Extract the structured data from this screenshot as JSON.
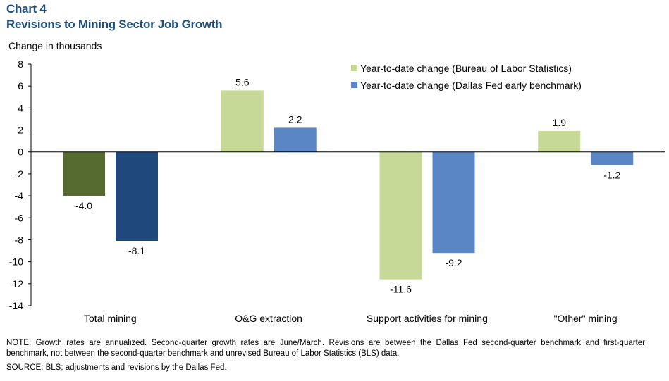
{
  "header": {
    "chart_number": "Chart 4",
    "title": "Revisions to Mining Sector Job Growth"
  },
  "y_unit_label": "Change in thousands",
  "note": "NOTE: Growth rates are annualized. Second-quarter growth rates are June/March. Revisions are between the Dallas Fed second-quarter benchmark and first-quarter benchmark, not between the second-quarter benchmark and unrevised Bureau of Labor Statistics (BLS) data.",
  "source": "SOURCE: BLS; adjustments and revisions by the Dallas Fed.",
  "chart_data": {
    "type": "bar",
    "categories": [
      "Total mining",
      "O&G extraction",
      "Support activities for mining",
      "\"Other\" mining"
    ],
    "series": [
      {
        "name": "Year-to-date change (Bureau of Labor Statistics)",
        "values": [
          -4.0,
          5.6,
          -11.6,
          1.9
        ],
        "color": "#c6d997",
        "point_colors": [
          "#556b2f",
          "#c6d997",
          "#c6d997",
          "#c6d997"
        ]
      },
      {
        "name": "Year-to-date change (Dallas Fed early benchmark)",
        "values": [
          -8.1,
          2.2,
          -9.2,
          -1.2
        ],
        "color": "#5b86c5",
        "point_colors": [
          "#1f497d",
          "#5b86c5",
          "#5b86c5",
          "#5b86c5"
        ]
      }
    ],
    "data_labels": [
      [
        "-4.0",
        "5.6",
        "-11.6",
        "1.9"
      ],
      [
        "-8.1",
        "2.2",
        "-9.2",
        "-1.2"
      ]
    ],
    "y_ticks": [
      "8",
      "6",
      "4",
      "2",
      "0",
      "-2",
      "-4",
      "-6",
      "-8",
      "-10",
      "-12",
      "-14"
    ],
    "ylim": [
      -14,
      8
    ],
    "ylabel": "Change in thousands",
    "grid": false,
    "legend_position": "top-right"
  }
}
